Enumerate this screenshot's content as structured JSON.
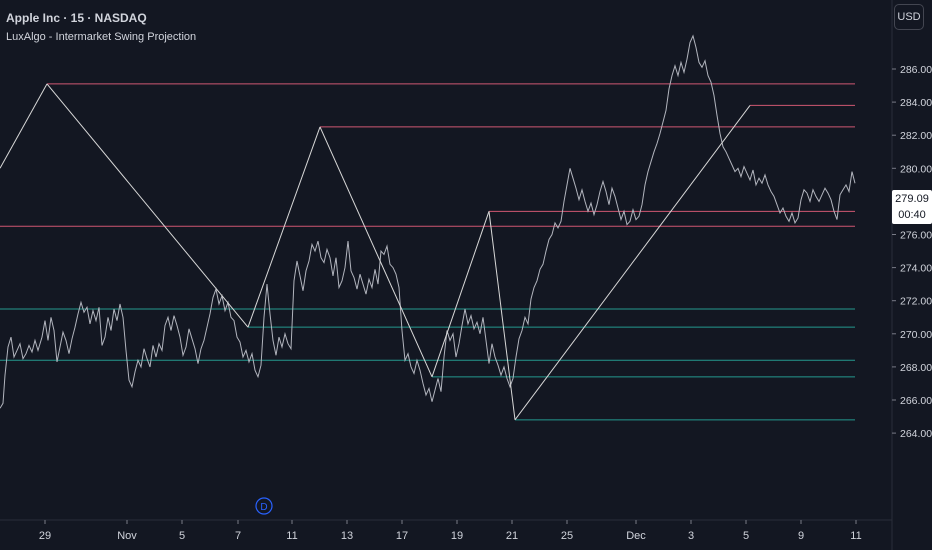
{
  "header": {
    "title": "Apple Inc · 15 · NASDAQ",
    "indicator": "LuxAlgo - Intermarket Swing Projection"
  },
  "currency_button": "USD",
  "last_price": {
    "value": "279.09",
    "countdown": "00:40"
  },
  "marker": {
    "label": "D"
  },
  "colors": {
    "background": "#131722",
    "price_line": "#b2b5be",
    "zigzag": "#d8d8d8",
    "resistance": "#f0637f",
    "support": "#26a69a",
    "marker": "#2962ff"
  },
  "chart_data": {
    "type": "line",
    "y_axis": {
      "ticks": [
        "286.00",
        "284.00",
        "282.00",
        "280.00",
        "278.00",
        "276.00",
        "274.00",
        "272.00",
        "270.00",
        "268.00",
        "266.00",
        "264.00"
      ],
      "ylim": [
        262.5,
        288.6
      ],
      "position": "right"
    },
    "x_axis": {
      "ticks": [
        "29",
        "Nov",
        "5",
        "7",
        "11",
        "13",
        "17",
        "19",
        "21",
        "25",
        "Dec",
        "3",
        "5",
        "9",
        "11"
      ]
    },
    "price_series": [
      [
        0,
        265.5
      ],
      [
        3,
        265.8
      ],
      [
        5,
        267.5
      ],
      [
        8,
        269.2
      ],
      [
        11,
        269.8
      ],
      [
        14,
        268.6
      ],
      [
        17,
        269.0
      ],
      [
        20,
        269.4
      ],
      [
        23,
        268.5
      ],
      [
        26,
        268.8
      ],
      [
        29,
        269.3
      ],
      [
        32,
        268.9
      ],
      [
        35,
        269.6
      ],
      [
        38,
        269.0
      ],
      [
        42,
        269.8
      ],
      [
        45,
        270.8
      ],
      [
        48,
        269.6
      ],
      [
        51,
        271.0
      ],
      [
        54,
        270.2
      ],
      [
        57,
        268.3
      ],
      [
        60,
        269.2
      ],
      [
        63,
        270.1
      ],
      [
        66,
        269.6
      ],
      [
        69,
        268.8
      ],
      [
        72,
        269.7
      ],
      [
        75,
        270.4
      ],
      [
        78,
        271.2
      ],
      [
        81,
        271.9
      ],
      [
        84,
        271.3
      ],
      [
        87,
        271.6
      ],
      [
        90,
        270.6
      ],
      [
        93,
        271.4
      ],
      [
        96,
        270.8
      ],
      [
        99,
        271.6
      ],
      [
        102,
        269.3
      ],
      [
        105,
        269.8
      ],
      [
        108,
        271.0
      ],
      [
        111,
        270.2
      ],
      [
        114,
        271.5
      ],
      [
        117,
        270.8
      ],
      [
        120,
        271.8
      ],
      [
        123,
        271.0
      ],
      [
        126,
        269.0
      ],
      [
        129,
        267.2
      ],
      [
        132,
        266.8
      ],
      [
        135,
        267.7
      ],
      [
        138,
        268.4
      ],
      [
        141,
        268.0
      ],
      [
        144,
        269.1
      ],
      [
        147,
        268.5
      ],
      [
        150,
        268.0
      ],
      [
        153,
        269.3
      ],
      [
        156,
        268.6
      ],
      [
        159,
        269.4
      ],
      [
        162,
        269.0
      ],
      [
        165,
        270.5
      ],
      [
        168,
        271.0
      ],
      [
        171,
        270.2
      ],
      [
        174,
        271.1
      ],
      [
        177,
        270.5
      ],
      [
        180,
        269.8
      ],
      [
        183,
        268.7
      ],
      [
        186,
        269.2
      ],
      [
        189,
        270.3
      ],
      [
        192,
        269.7
      ],
      [
        195,
        269.1
      ],
      [
        198,
        268.2
      ],
      [
        201,
        269.1
      ],
      [
        204,
        269.6
      ],
      [
        207,
        270.4
      ],
      [
        210,
        271.2
      ],
      [
        213,
        272.2
      ],
      [
        216,
        272.7
      ],
      [
        219,
        271.8
      ],
      [
        222,
        272.3
      ],
      [
        225,
        271.4
      ],
      [
        228,
        271.9
      ],
      [
        231,
        271.0
      ],
      [
        234,
        270.8
      ],
      [
        237,
        269.8
      ],
      [
        240,
        269.5
      ],
      [
        243,
        268.6
      ],
      [
        246,
        269.0
      ],
      [
        249,
        268.3
      ],
      [
        252,
        268.8
      ],
      [
        255,
        267.8
      ],
      [
        258,
        267.4
      ],
      [
        261,
        268.1
      ],
      [
        264,
        271.0
      ],
      [
        267,
        273.0
      ],
      [
        270,
        271.2
      ],
      [
        273,
        269.6
      ],
      [
        276,
        268.7
      ],
      [
        279,
        269.8
      ],
      [
        282,
        269.2
      ],
      [
        285,
        270.0
      ],
      [
        288,
        269.4
      ],
      [
        291,
        269.1
      ],
      [
        294,
        273.2
      ],
      [
        297,
        274.4
      ],
      [
        300,
        273.5
      ],
      [
        303,
        272.6
      ],
      [
        306,
        273.8
      ],
      [
        309,
        274.4
      ],
      [
        312,
        275.4
      ],
      [
        315,
        275.0
      ],
      [
        318,
        275.6
      ],
      [
        321,
        274.6
      ],
      [
        324,
        274.3
      ],
      [
        327,
        275.1
      ],
      [
        330,
        274.6
      ],
      [
        333,
        273.5
      ],
      [
        336,
        274.6
      ],
      [
        339,
        272.8
      ],
      [
        342,
        273.2
      ],
      [
        345,
        274.0
      ],
      [
        348,
        275.6
      ],
      [
        351,
        273.8
      ],
      [
        354,
        273.4
      ],
      [
        357,
        272.7
      ],
      [
        360,
        273.6
      ],
      [
        363,
        273.0
      ],
      [
        366,
        272.4
      ],
      [
        369,
        273.3
      ],
      [
        372,
        272.8
      ],
      [
        375,
        273.9
      ],
      [
        378,
        273.0
      ],
      [
        381,
        275.0
      ],
      [
        384,
        274.8
      ],
      [
        387,
        275.3
      ],
      [
        390,
        274.2
      ],
      [
        393,
        274.0
      ],
      [
        396,
        273.6
      ],
      [
        399,
        272.8
      ],
      [
        402,
        270.2
      ],
      [
        405,
        268.4
      ],
      [
        408,
        268.8
      ],
      [
        411,
        268.0
      ],
      [
        414,
        267.6
      ],
      [
        417,
        268.4
      ],
      [
        420,
        267.8
      ],
      [
        423,
        267.0
      ],
      [
        426,
        266.3
      ],
      [
        429,
        266.7
      ],
      [
        432,
        265.9
      ],
      [
        435,
        266.6
      ],
      [
        438,
        267.3
      ],
      [
        441,
        266.5
      ],
      [
        444,
        268.6
      ],
      [
        447,
        270.2
      ],
      [
        450,
        269.6
      ],
      [
        453,
        270.0
      ],
      [
        456,
        268.6
      ],
      [
        459,
        269.4
      ],
      [
        462,
        270.5
      ],
      [
        465,
        271.5
      ],
      [
        468,
        270.6
      ],
      [
        471,
        271.1
      ],
      [
        474,
        270.3
      ],
      [
        477,
        270.7
      ],
      [
        480,
        270.0
      ],
      [
        483,
        271.0
      ],
      [
        486,
        269.6
      ],
      [
        489,
        268.2
      ],
      [
        492,
        269.4
      ],
      [
        495,
        268.6
      ],
      [
        498,
        268.1
      ],
      [
        501,
        267.5
      ],
      [
        504,
        268.0
      ],
      [
        507,
        267.3
      ],
      [
        510,
        266.8
      ],
      [
        513,
        267.3
      ],
      [
        516,
        268.6
      ],
      [
        519,
        269.7
      ],
      [
        522,
        270.2
      ],
      [
        525,
        271.0
      ],
      [
        528,
        270.6
      ],
      [
        531,
        272.1
      ],
      [
        534,
        272.8
      ],
      [
        537,
        273.2
      ],
      [
        540,
        273.9
      ],
      [
        543,
        274.2
      ],
      [
        546,
        275.0
      ],
      [
        549,
        275.7
      ],
      [
        552,
        276.0
      ],
      [
        555,
        276.7
      ],
      [
        558,
        276.4
      ],
      [
        561,
        276.8
      ],
      [
        564,
        278.0
      ],
      [
        567,
        279.0
      ],
      [
        570,
        280.0
      ],
      [
        573,
        279.4
      ],
      [
        576,
        278.8
      ],
      [
        579,
        278.1
      ],
      [
        582,
        278.7
      ],
      [
        585,
        278.0
      ],
      [
        588,
        277.4
      ],
      [
        591,
        277.9
      ],
      [
        594,
        277.2
      ],
      [
        597,
        277.8
      ],
      [
        600,
        278.6
      ],
      [
        603,
        279.2
      ],
      [
        606,
        278.6
      ],
      [
        609,
        277.8
      ],
      [
        612,
        278.8
      ],
      [
        615,
        278.3
      ],
      [
        618,
        277.6
      ],
      [
        621,
        276.9
      ],
      [
        624,
        277.4
      ],
      [
        627,
        276.6
      ],
      [
        630,
        276.8
      ],
      [
        633,
        277.5
      ],
      [
        636,
        276.9
      ],
      [
        639,
        277.1
      ],
      [
        642,
        277.8
      ],
      [
        645,
        279.0
      ],
      [
        648,
        279.8
      ],
      [
        651,
        280.4
      ],
      [
        654,
        281.0
      ],
      [
        657,
        281.5
      ],
      [
        660,
        282.1
      ],
      [
        663,
        282.8
      ],
      [
        666,
        283.5
      ],
      [
        669,
        284.8
      ],
      [
        672,
        285.6
      ],
      [
        675,
        286.2
      ],
      [
        678,
        285.6
      ],
      [
        681,
        286.4
      ],
      [
        684,
        285.8
      ],
      [
        687,
        286.6
      ],
      [
        690,
        287.6
      ],
      [
        693,
        288.0
      ],
      [
        696,
        287.3
      ],
      [
        699,
        286.4
      ],
      [
        702,
        286.1
      ],
      [
        705,
        286.5
      ],
      [
        708,
        285.6
      ],
      [
        711,
        285.2
      ],
      [
        714,
        284.4
      ],
      [
        717,
        283.2
      ],
      [
        720,
        282.1
      ],
      [
        723,
        281.3
      ],
      [
        726,
        281.0
      ],
      [
        729,
        280.6
      ],
      [
        732,
        280.2
      ],
      [
        735,
        279.8
      ],
      [
        738,
        280.0
      ],
      [
        741,
        279.5
      ],
      [
        744,
        280.1
      ],
      [
        747,
        279.7
      ],
      [
        750,
        279.3
      ],
      [
        753,
        279.9
      ],
      [
        756,
        279.0
      ],
      [
        759,
        279.4
      ],
      [
        762,
        279.1
      ],
      [
        765,
        279.6
      ],
      [
        768,
        279.0
      ],
      [
        771,
        278.6
      ],
      [
        774,
        278.3
      ],
      [
        777,
        277.8
      ],
      [
        780,
        277.3
      ],
      [
        783,
        277.6
      ],
      [
        786,
        277.1
      ],
      [
        789,
        276.8
      ],
      [
        792,
        277.3
      ],
      [
        795,
        276.7
      ],
      [
        798,
        277.0
      ],
      [
        801,
        278.1
      ],
      [
        804,
        278.7
      ],
      [
        807,
        278.5
      ],
      [
        810,
        278.0
      ],
      [
        813,
        278.7
      ],
      [
        816,
        278.3
      ],
      [
        819,
        278.0
      ],
      [
        822,
        278.4
      ],
      [
        825,
        278.8
      ],
      [
        828,
        278.5
      ],
      [
        831,
        278.1
      ],
      [
        834,
        277.4
      ],
      [
        837,
        276.9
      ],
      [
        840,
        278.4
      ],
      [
        843,
        278.7
      ],
      [
        846,
        279.0
      ],
      [
        849,
        278.6
      ],
      [
        852,
        279.8
      ],
      [
        855,
        279.1
      ]
    ],
    "zigzag": [
      [
        0,
        280.0
      ],
      [
        47,
        285.1
      ],
      [
        248,
        270.4
      ],
      [
        320,
        282.5
      ],
      [
        432,
        267.4
      ],
      [
        489,
        277.4
      ],
      [
        515,
        264.8
      ],
      [
        750,
        283.8
      ]
    ],
    "resistance_levels": [
      {
        "value": 285.1,
        "from": 47
      },
      {
        "value": 283.8,
        "from": 750
      },
      {
        "value": 282.5,
        "from": 320
      },
      {
        "value": 277.4,
        "from": 489
      },
      {
        "value": 276.5,
        "from": 0
      }
    ],
    "support_levels": [
      {
        "value": 271.5,
        "from": 0
      },
      {
        "value": 270.4,
        "from": 248
      },
      {
        "value": 268.4,
        "from": 0
      },
      {
        "value": 267.4,
        "from": 432
      },
      {
        "value": 264.8,
        "from": 515
      }
    ]
  }
}
